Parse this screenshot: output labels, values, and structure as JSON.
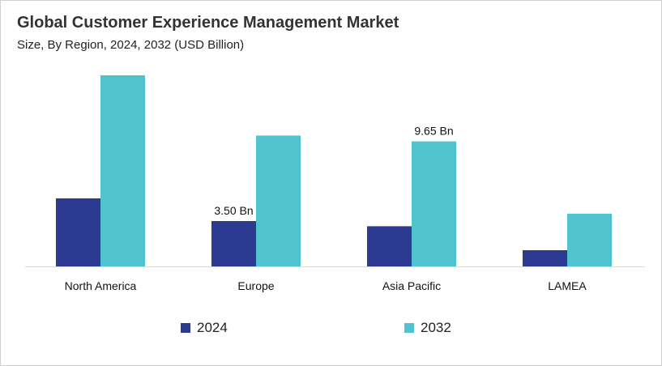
{
  "chart_data": {
    "type": "bar",
    "title": "Global Customer Experience Management Market",
    "subtitle": "Size, By Region, 2024, 2032 (USD Billion)",
    "categories": [
      "North America",
      "Europe",
      "Asia Pacific",
      "LAMEA"
    ],
    "series": [
      {
        "name": "2024",
        "color": "#2b3990",
        "values": [
          5.25,
          3.5,
          3.1,
          1.25
        ],
        "data_labels": [
          null,
          "3.50 Bn",
          null,
          null
        ]
      },
      {
        "name": "2032",
        "color": "#4fc4cf",
        "values": [
          14.75,
          10.1,
          9.65,
          4.07
        ],
        "data_labels": [
          null,
          null,
          "9.65 Bn",
          null
        ]
      }
    ],
    "ylim": [
      0,
      15
    ],
    "grid": false,
    "legend": "bottom"
  }
}
